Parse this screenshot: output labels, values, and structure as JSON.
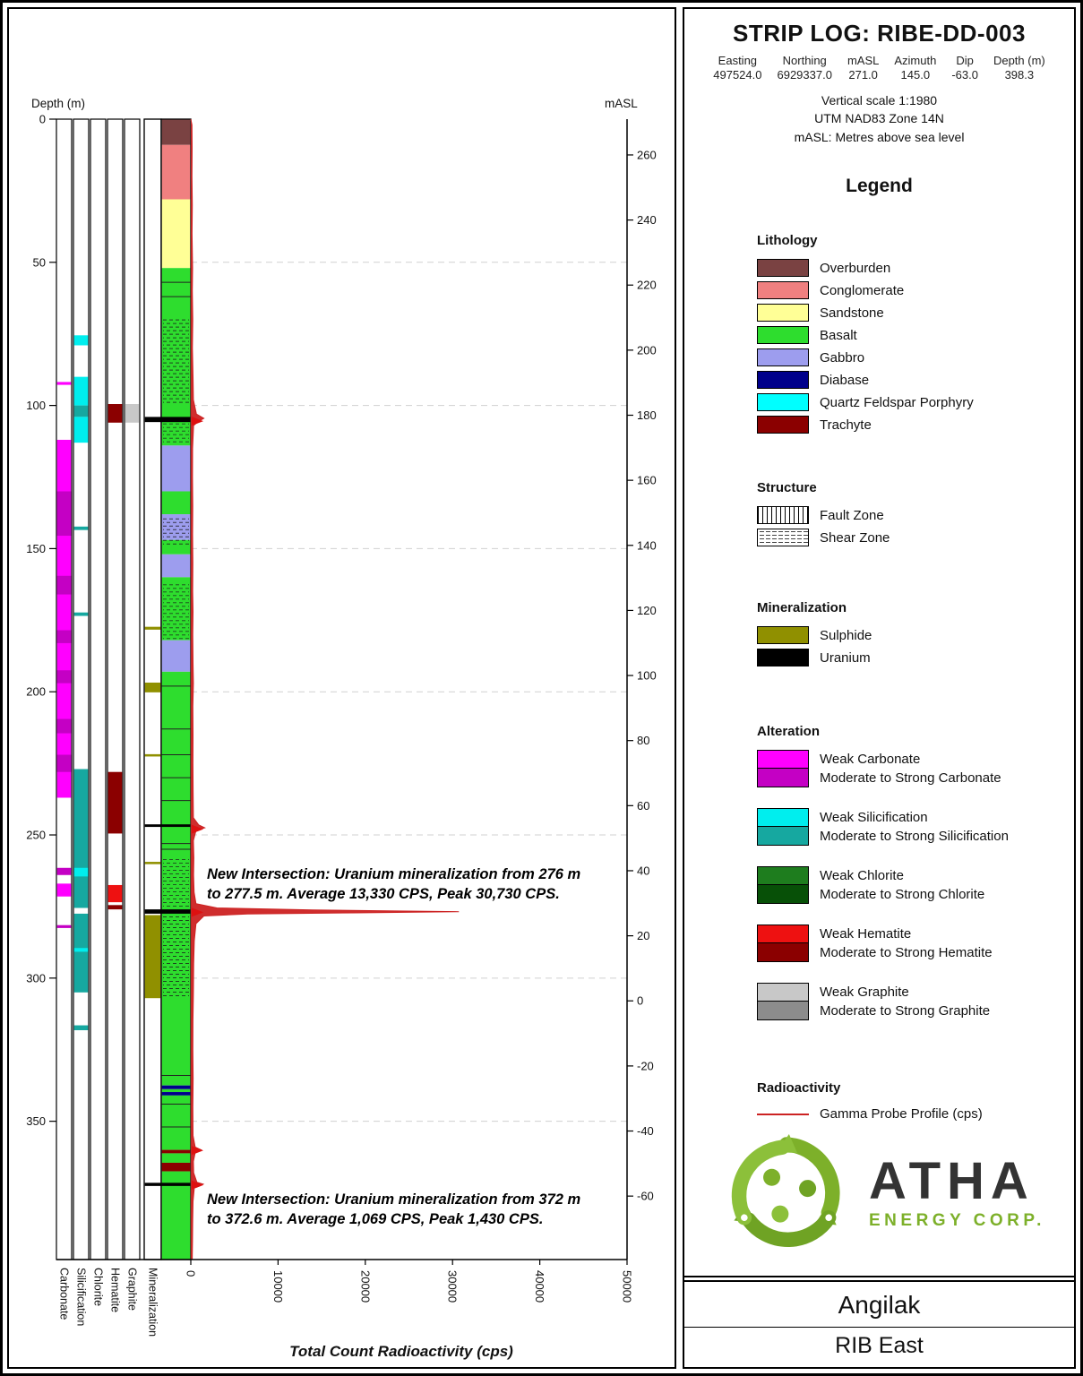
{
  "header": {
    "title": "STRIP LOG: RIBE-DD-003",
    "meta": [
      {
        "label": "Easting",
        "value": "497524.0"
      },
      {
        "label": "Northing",
        "value": "6929337.0"
      },
      {
        "label": "mASL",
        "value": "271.0"
      },
      {
        "label": "Azimuth",
        "value": "145.0"
      },
      {
        "label": "Dip",
        "value": "-63.0"
      },
      {
        "label": "Depth (m)",
        "value": "398.3"
      }
    ],
    "notes": [
      "Vertical scale 1:1980",
      "UTM NAD83 Zone 14N",
      "mASL: Metres above sea level"
    ]
  },
  "legend": {
    "title": "Legend",
    "lithology": {
      "title": "Lithology",
      "items": [
        {
          "label": "Overburden",
          "key": "Overburden"
        },
        {
          "label": "Conglomerate",
          "key": "Conglomerate"
        },
        {
          "label": "Sandstone",
          "key": "Sandstone"
        },
        {
          "label": "Basalt",
          "key": "Basalt"
        },
        {
          "label": "Gabbro",
          "key": "Gabbro"
        },
        {
          "label": "Diabase",
          "key": "Diabase"
        },
        {
          "label": "Quartz Feldspar Porphyry",
          "key": "Quartz Feldspar Porphyry"
        },
        {
          "label": "Trachyte",
          "key": "Trachyte"
        }
      ]
    },
    "structure": {
      "title": "Structure",
      "items": [
        {
          "label": "Fault Zone",
          "pattern": "fault"
        },
        {
          "label": "Shear Zone",
          "pattern": "shear"
        }
      ]
    },
    "mineralization": {
      "title": "Mineralization",
      "items": [
        {
          "label": "Sulphide",
          "key": "Sulphide"
        },
        {
          "label": "Uranium",
          "key": "Uranium"
        }
      ]
    },
    "alteration": {
      "title": "Alteration",
      "groups": [
        {
          "name": "carbonate",
          "weak_label": "Weak Carbonate",
          "strong_label": "Moderate to Strong Carbonate"
        },
        {
          "name": "silicification",
          "weak_label": "Weak Silicification",
          "strong_label": "Moderate to Strong Silicification"
        },
        {
          "name": "chlorite",
          "weak_label": "Weak Chlorite",
          "strong_label": "Moderate to Strong Chlorite"
        },
        {
          "name": "hematite",
          "weak_label": "Weak Hematite",
          "strong_label": "Moderate to Strong Hematite"
        },
        {
          "name": "graphite",
          "weak_label": "Weak Graphite",
          "strong_label": "Moderate to Strong Graphite"
        }
      ]
    },
    "radioactivity": {
      "title": "Radioactivity",
      "items": [
        {
          "label": "Gamma Probe Profile (cps)"
        }
      ]
    }
  },
  "logo": {
    "brand": "ATHA",
    "sub": "ENERGY CORP.",
    "greens": [
      "#7db02a",
      "#6fa324",
      "#8cc03a"
    ],
    "text_color": "#333333"
  },
  "footer": {
    "project": "Angilak",
    "area": "RIB East"
  },
  "axes": {
    "depth_label": "Depth (m)",
    "masl_label": "mASL",
    "x_label": "Total Count Radioactivity (cps)",
    "depth_ticks": [
      0,
      50,
      100,
      150,
      200,
      250,
      300,
      350
    ],
    "masl_ticks": [
      260,
      240,
      220,
      200,
      180,
      160,
      140,
      120,
      100,
      80,
      60,
      40,
      20,
      0,
      -20,
      -40,
      -60
    ],
    "cps_ticks": [
      0,
      10000,
      20000,
      30000,
      40000,
      50000
    ],
    "track_labels": [
      "Carbonate",
      "Silicification",
      "Chlorite",
      "Hematite",
      "Graphite",
      "Mineralization"
    ]
  },
  "annotations": [
    {
      "anchor_depth_m": 260.5,
      "lines": [
        "New Intersection: Uranium mineralization from 276 m",
        "to 277.5 m. Average 13,330 CPS, Peak 30,730 CPS."
      ]
    },
    {
      "anchor_depth_m": 374.2,
      "lines": [
        "New Intersection: Uranium mineralization from 372 m",
        "to 372.6 m. Average 1,069 CPS, Peak 1,430 CPS."
      ]
    }
  ],
  "colors": {
    "lithology": {
      "Overburden": "#7a4242",
      "Conglomerate": "#f08080",
      "Sandstone": "#ffff96",
      "Basalt": "#2edd2e",
      "Gabbro": "#9d9dee",
      "Diabase": "#00008b",
      "Quartz Feldspar Porphyry": "#00ffff",
      "Trachyte": "#8b0000"
    },
    "mineralization": {
      "Sulphide": "#909000",
      "Uranium": "#000000"
    },
    "alteration": {
      "carbonate": {
        "weak": "#ff00ff",
        "strong": "#c400c4"
      },
      "silicification": {
        "weak": "#00eeee",
        "strong": "#16a8a0"
      },
      "chlorite": {
        "weak": "#1e7d1e",
        "strong": "#075007"
      },
      "hematite": {
        "weak": "#ee1111",
        "strong": "#8b0000"
      },
      "graphite": {
        "weak": "#c8c8c8",
        "strong": "#8c8c8c"
      }
    },
    "gamma": "#cc2222"
  },
  "chart_data": {
    "type": "strip-log",
    "hole_id": "RIBE-DD-003",
    "depth_range_m": [
      0,
      398.3
    ],
    "collar_masl": 271.0,
    "dip_deg": -63.0,
    "masl_vertical_factor": 0.88,
    "cps_axis": {
      "min": 0,
      "max": 50000
    },
    "lithology_intervals_m": [
      {
        "f": 0,
        "t": 9,
        "u": "Overburden"
      },
      {
        "f": 9,
        "t": 28,
        "u": "Conglomerate"
      },
      {
        "f": 28,
        "t": 52,
        "u": "Sandstone"
      },
      {
        "f": 52,
        "t": 114,
        "u": "Basalt"
      },
      {
        "f": 114,
        "t": 130,
        "u": "Gabbro"
      },
      {
        "f": 130,
        "t": 138,
        "u": "Basalt"
      },
      {
        "f": 138,
        "t": 147,
        "u": "Gabbro"
      },
      {
        "f": 147,
        "t": 152,
        "u": "Basalt"
      },
      {
        "f": 152,
        "t": 160,
        "u": "Gabbro"
      },
      {
        "f": 160,
        "t": 182,
        "u": "Basalt"
      },
      {
        "f": 182,
        "t": 193,
        "u": "Gabbro"
      },
      {
        "f": 193,
        "t": 337.5,
        "u": "Basalt"
      },
      {
        "f": 337.5,
        "t": 338.8,
        "u": "Diabase"
      },
      {
        "f": 338.8,
        "t": 339.8,
        "u": "Basalt"
      },
      {
        "f": 339.8,
        "t": 341,
        "u": "Diabase"
      },
      {
        "f": 341,
        "t": 360,
        "u": "Basalt"
      },
      {
        "f": 360,
        "t": 361.2,
        "u": "Trachyte"
      },
      {
        "f": 361.2,
        "t": 364.5,
        "u": "Basalt"
      },
      {
        "f": 364.5,
        "t": 367.5,
        "u": "Trachyte"
      },
      {
        "f": 367.5,
        "t": 398.3,
        "u": "Basalt"
      }
    ],
    "structure_intervals_m": [
      {
        "f": 69.5,
        "t": 100,
        "type": "Shear Zone"
      },
      {
        "f": 105.8,
        "t": 114,
        "type": "Shear Zone"
      },
      {
        "f": 139,
        "t": 149,
        "type": "Shear Zone"
      },
      {
        "f": 162,
        "t": 182,
        "type": "Shear Zone"
      },
      {
        "f": 258,
        "t": 275.5,
        "type": "Shear Zone"
      },
      {
        "f": 278,
        "t": 307.5,
        "type": "Shear Zone"
      }
    ],
    "mineralization_intervals_m": [
      {
        "f": 104,
        "t": 105.8,
        "type": "Uranium"
      },
      {
        "f": 177.3,
        "t": 178.3,
        "type": "Sulphide"
      },
      {
        "f": 196.8,
        "t": 200.2,
        "type": "Sulphide"
      },
      {
        "f": 221.8,
        "t": 222.6,
        "type": "Sulphide"
      },
      {
        "f": 246.3,
        "t": 247.2,
        "type": "Uranium"
      },
      {
        "f": 259.4,
        "t": 260.2,
        "type": "Sulphide"
      },
      {
        "f": 276,
        "t": 277.5,
        "type": "Uranium"
      },
      {
        "f": 278,
        "t": 307,
        "type": "Sulphide"
      },
      {
        "f": 371.5,
        "t": 372.6,
        "type": "Uranium"
      }
    ],
    "alteration_intervals_m": {
      "carbonate": [
        {
          "f": 91.8,
          "t": 92.8,
          "i": "weak"
        },
        {
          "f": 112,
          "t": 237,
          "i": "weak"
        },
        {
          "f": 130,
          "t": 145.5,
          "i": "strong"
        },
        {
          "f": 159.5,
          "t": 166,
          "i": "strong"
        },
        {
          "f": 178.5,
          "t": 183,
          "i": "strong"
        },
        {
          "f": 192.5,
          "t": 197,
          "i": "strong"
        },
        {
          "f": 209.5,
          "t": 214.5,
          "i": "strong"
        },
        {
          "f": 222,
          "t": 228,
          "i": "strong"
        },
        {
          "f": 261.5,
          "t": 264,
          "i": "strong"
        },
        {
          "f": 267,
          "t": 271.5,
          "i": "weak"
        },
        {
          "f": 281.5,
          "t": 282.5,
          "i": "strong"
        }
      ],
      "silicification": [
        {
          "f": 75.5,
          "t": 79,
          "i": "weak"
        },
        {
          "f": 90,
          "t": 100,
          "i": "weak"
        },
        {
          "f": 100,
          "t": 104,
          "i": "strong"
        },
        {
          "f": 104,
          "t": 113,
          "i": "weak"
        },
        {
          "f": 142.3,
          "t": 143.5,
          "i": "strong"
        },
        {
          "f": 172.3,
          "t": 173.5,
          "i": "strong"
        },
        {
          "f": 227,
          "t": 275.5,
          "i": "strong"
        },
        {
          "f": 261.5,
          "t": 264.5,
          "i": "weak"
        },
        {
          "f": 277.5,
          "t": 305,
          "i": "strong"
        },
        {
          "f": 289.5,
          "t": 290.8,
          "i": "weak"
        },
        {
          "f": 316.5,
          "t": 318.2,
          "i": "strong"
        }
      ],
      "chlorite": [],
      "hematite": [
        {
          "f": 99.5,
          "t": 106,
          "i": "strong"
        },
        {
          "f": 228,
          "t": 249.5,
          "i": "strong"
        },
        {
          "f": 267.5,
          "t": 273.5,
          "i": "weak"
        },
        {
          "f": 274.5,
          "t": 276,
          "i": "strong"
        }
      ],
      "graphite": [
        {
          "f": 99.5,
          "t": 106,
          "i": "weak"
        }
      ]
    },
    "contact_depths_m": [
      57,
      62,
      198,
      213,
      222,
      230,
      238,
      253,
      255,
      334,
      344,
      352
    ],
    "anomaly_marker_depths_m": [
      105.5,
      248,
      277,
      360.2,
      372.3
    ],
    "gamma_profile_cps": [
      [
        0,
        0
      ],
      [
        2,
        130
      ],
      [
        10,
        150
      ],
      [
        20,
        130
      ],
      [
        30,
        170
      ],
      [
        40,
        140
      ],
      [
        52,
        210
      ],
      [
        60,
        170
      ],
      [
        70,
        230
      ],
      [
        80,
        180
      ],
      [
        90,
        260
      ],
      [
        98,
        300
      ],
      [
        103,
        650
      ],
      [
        104.5,
        1500
      ],
      [
        105.5,
        900
      ],
      [
        107,
        320
      ],
      [
        115,
        210
      ],
      [
        125,
        190
      ],
      [
        135,
        230
      ],
      [
        145,
        210
      ],
      [
        155,
        240
      ],
      [
        165,
        220
      ],
      [
        172,
        260
      ],
      [
        180,
        230
      ],
      [
        190,
        260
      ],
      [
        197,
        300
      ],
      [
        205,
        240
      ],
      [
        215,
        260
      ],
      [
        225,
        250
      ],
      [
        235,
        270
      ],
      [
        244,
        300
      ],
      [
        246.5,
        900
      ],
      [
        247.5,
        1600
      ],
      [
        248.5,
        600
      ],
      [
        252,
        300
      ],
      [
        258,
        350
      ],
      [
        264,
        320
      ],
      [
        270,
        380
      ],
      [
        274,
        600
      ],
      [
        275.5,
        3000
      ],
      [
        276.2,
        14000
      ],
      [
        276.8,
        30730
      ],
      [
        277.2,
        19000
      ],
      [
        277.6,
        6500
      ],
      [
        278.3,
        1500
      ],
      [
        281,
        600
      ],
      [
        287,
        400
      ],
      [
        295,
        330
      ],
      [
        305,
        300
      ],
      [
        315,
        250
      ],
      [
        325,
        240
      ],
      [
        335,
        270
      ],
      [
        345,
        240
      ],
      [
        355,
        260
      ],
      [
        359,
        500
      ],
      [
        360,
        1200
      ],
      [
        361,
        500
      ],
      [
        364,
        300
      ],
      [
        368,
        330
      ],
      [
        371.3,
        700
      ],
      [
        372,
        1430
      ],
      [
        372.6,
        1000
      ],
      [
        373.3,
        400
      ],
      [
        378,
        260
      ],
      [
        385,
        220
      ],
      [
        392,
        190
      ],
      [
        398.3,
        160
      ]
    ]
  }
}
